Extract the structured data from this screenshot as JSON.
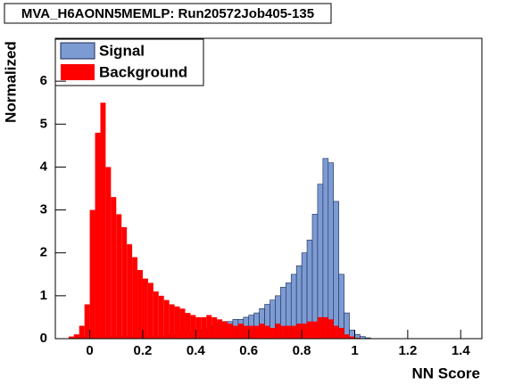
{
  "chart_data": {
    "type": "histogram",
    "title": "MVA_H6AONN5MEMLP: Run20572Job405-135",
    "x_label": "NN Score",
    "y_label": "Normalized",
    "bins": [
      -0.1,
      -0.08,
      -0.06,
      -0.04,
      -0.02,
      0,
      0.02,
      0.04,
      0.06,
      0.08,
      0.1,
      0.12,
      0.14,
      0.16,
      0.18,
      0.2,
      0.22,
      0.24,
      0.26,
      0.28,
      0.3,
      0.32,
      0.34,
      0.36,
      0.38,
      0.4,
      0.42,
      0.44,
      0.46,
      0.48,
      0.5,
      0.52,
      0.54,
      0.56,
      0.58,
      0.6,
      0.62,
      0.64,
      0.66,
      0.68,
      0.7,
      0.72,
      0.74,
      0.76,
      0.78,
      0.8,
      0.82,
      0.84,
      0.86,
      0.88,
      0.9,
      0.92,
      0.94,
      0.96,
      0.98,
      1,
      1.02,
      1.04,
      1.06,
      1.08,
      1.1,
      1.12,
      1.14,
      1.16,
      1.18,
      1.2,
      1.22,
      1.24,
      1.26,
      1.28,
      1.3,
      1.32,
      1.34,
      1.36,
      1.38,
      1.4,
      1.42,
      1.44,
      1.46,
      1.48,
      1.5
    ],
    "series": [
      {
        "name": "Signal",
        "color": "#7d9bd3",
        "values": [
          0,
          0,
          0.02,
          0.03,
          0.04,
          0.05,
          0.05,
          0.05,
          0.05,
          0.05,
          0.05,
          0.05,
          0.05,
          0.05,
          0.05,
          0.05,
          0.05,
          0.05,
          0.05,
          0.05,
          0.1,
          0.1,
          0.12,
          0.15,
          0.15,
          0.2,
          0.2,
          0.25,
          0.3,
          0.35,
          0.4,
          0.4,
          0.45,
          0.45,
          0.5,
          0.55,
          0.6,
          0.7,
          0.8,
          0.9,
          1.0,
          1.2,
          1.3,
          1.5,
          1.7,
          2.0,
          2.3,
          2.9,
          3.6,
          4.2,
          4.1,
          3.2,
          1.5,
          0.6,
          0.2,
          0.1,
          0.05,
          0.02,
          0,
          0,
          0,
          0,
          0,
          0,
          0,
          0,
          0,
          0,
          0,
          0,
          0,
          0,
          0,
          0,
          0,
          0,
          0,
          0,
          0,
          0
        ]
      },
      {
        "name": "Background",
        "color": "#ff0000",
        "values": [
          0,
          0.05,
          0.1,
          0.3,
          0.8,
          3.0,
          4.8,
          5.5,
          4.0,
          3.3,
          2.9,
          2.6,
          2.2,
          1.9,
          1.6,
          1.4,
          1.3,
          1.1,
          1.0,
          0.9,
          0.8,
          0.75,
          0.7,
          0.6,
          0.55,
          0.5,
          0.5,
          0.55,
          0.5,
          0.45,
          0.4,
          0.35,
          0.3,
          0.35,
          0.3,
          0.3,
          0.3,
          0.35,
          0.3,
          0.25,
          0.35,
          0.3,
          0.3,
          0.3,
          0.35,
          0.35,
          0.4,
          0.4,
          0.5,
          0.5,
          0.45,
          0.3,
          0.25,
          0.1,
          0.05,
          0.02,
          0,
          0,
          0,
          0,
          0,
          0,
          0,
          0,
          0,
          0,
          0,
          0,
          0,
          0,
          0,
          0,
          0,
          0,
          0,
          0,
          0,
          0,
          0,
          0
        ]
      }
    ],
    "xlim": [
      -0.13,
      1.48
    ],
    "ylim": [
      0,
      7
    ],
    "xticks": [
      0,
      0.2,
      0.4,
      0.6,
      0.8,
      1,
      1.2,
      1.4
    ],
    "yticks": [
      0,
      1,
      2,
      3,
      4,
      5,
      6
    ],
    "legend": "top-left"
  }
}
